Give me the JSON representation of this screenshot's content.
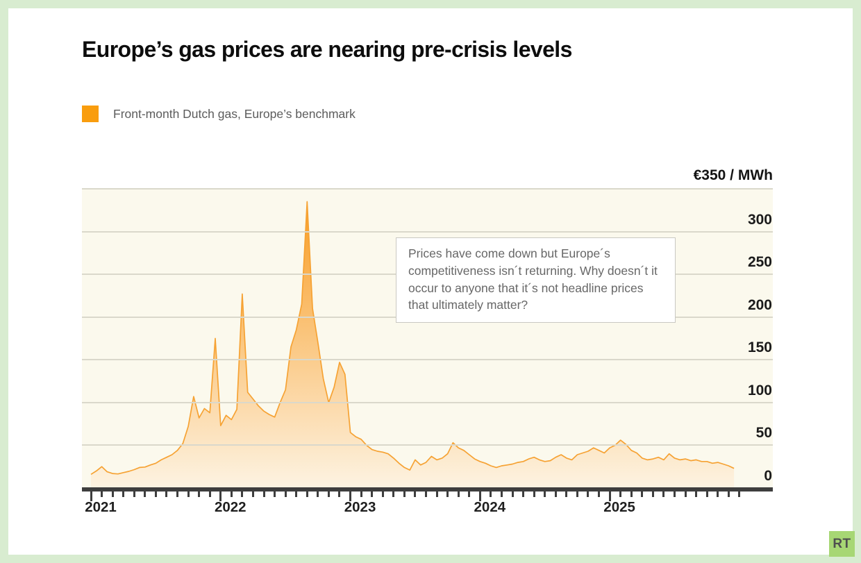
{
  "page": {
    "background": "#d8ecd0",
    "card_background": "#ffffff"
  },
  "header": {
    "title": "Europe’s gas prices are nearing pre-crisis levels"
  },
  "legend": {
    "swatch_color": "#f99d0e",
    "label": "Front-month Dutch gas, Europe’s benchmark"
  },
  "annotation": {
    "text": "Prices have come down but Europe´s competitiveness isn´t returning. Why doesn´t it occur to anyone that it´s not headline prices that ultimately matter?"
  },
  "branding": {
    "logo_text": "RT",
    "logo_background": "#a7d774",
    "logo_text_color": "#4f4f4f"
  },
  "chart_data": {
    "type": "area",
    "title": "Front-month Dutch gas, Europe's benchmark",
    "unit_label": "€350 / MWh",
    "ylabel": "€/MWh",
    "y_axis_max": 350,
    "y_axis_min": 0,
    "gridline_values": [
      350,
      300,
      250,
      200,
      150,
      100,
      50,
      0
    ],
    "y_tick_labels": [
      300,
      250,
      200,
      150,
      100,
      50,
      0
    ],
    "x_year_labels": [
      "2021",
      "2022",
      "2023",
      "2024",
      "2025"
    ],
    "x_start": "2021-01",
    "x_end": "2025-12",
    "x_range_months": 60,
    "samples_per_month": 2,
    "months_tick_count": 61,
    "grid_on": true,
    "legend_position": "top-left",
    "line_color": "#f6a233",
    "fill_gradient_top": "#f8991c",
    "fill_gradient_bottom": "#fdf3e2",
    "plot_background": "#fbf9ed",
    "grid_color": "#dad8cb",
    "axis_color": "#3e3e3e",
    "series": [
      {
        "name": "Front-month Dutch gas (TTF), €/MWh",
        "values": [
          16,
          20,
          25,
          19,
          17,
          16.5,
          18,
          19.5,
          21.5,
          24,
          24.5,
          27,
          29,
          33,
          36,
          39,
          44,
          52,
          72,
          107,
          82,
          93,
          88,
          175,
          73,
          85,
          80,
          92,
          227,
          112,
          104,
          96,
          90,
          86,
          83,
          100,
          115,
          165,
          185,
          215,
          335,
          210,
          170,
          128,
          100,
          118,
          147,
          133,
          65,
          60,
          57,
          50,
          45,
          43,
          42,
          40,
          35,
          29,
          24,
          21,
          33,
          27,
          30,
          37,
          33,
          35,
          40,
          53,
          47,
          44,
          39,
          34,
          31,
          29,
          26,
          24,
          26,
          27,
          28,
          30,
          31,
          34,
          36,
          33,
          31,
          32,
          36,
          39,
          35,
          33,
          39,
          41,
          43,
          47,
          44,
          41,
          47,
          50,
          56,
          51,
          44,
          41,
          35,
          33,
          34,
          36,
          33,
          40,
          35,
          33,
          34,
          32,
          33,
          31,
          31,
          29,
          30,
          28,
          26,
          23
        ]
      }
    ]
  }
}
